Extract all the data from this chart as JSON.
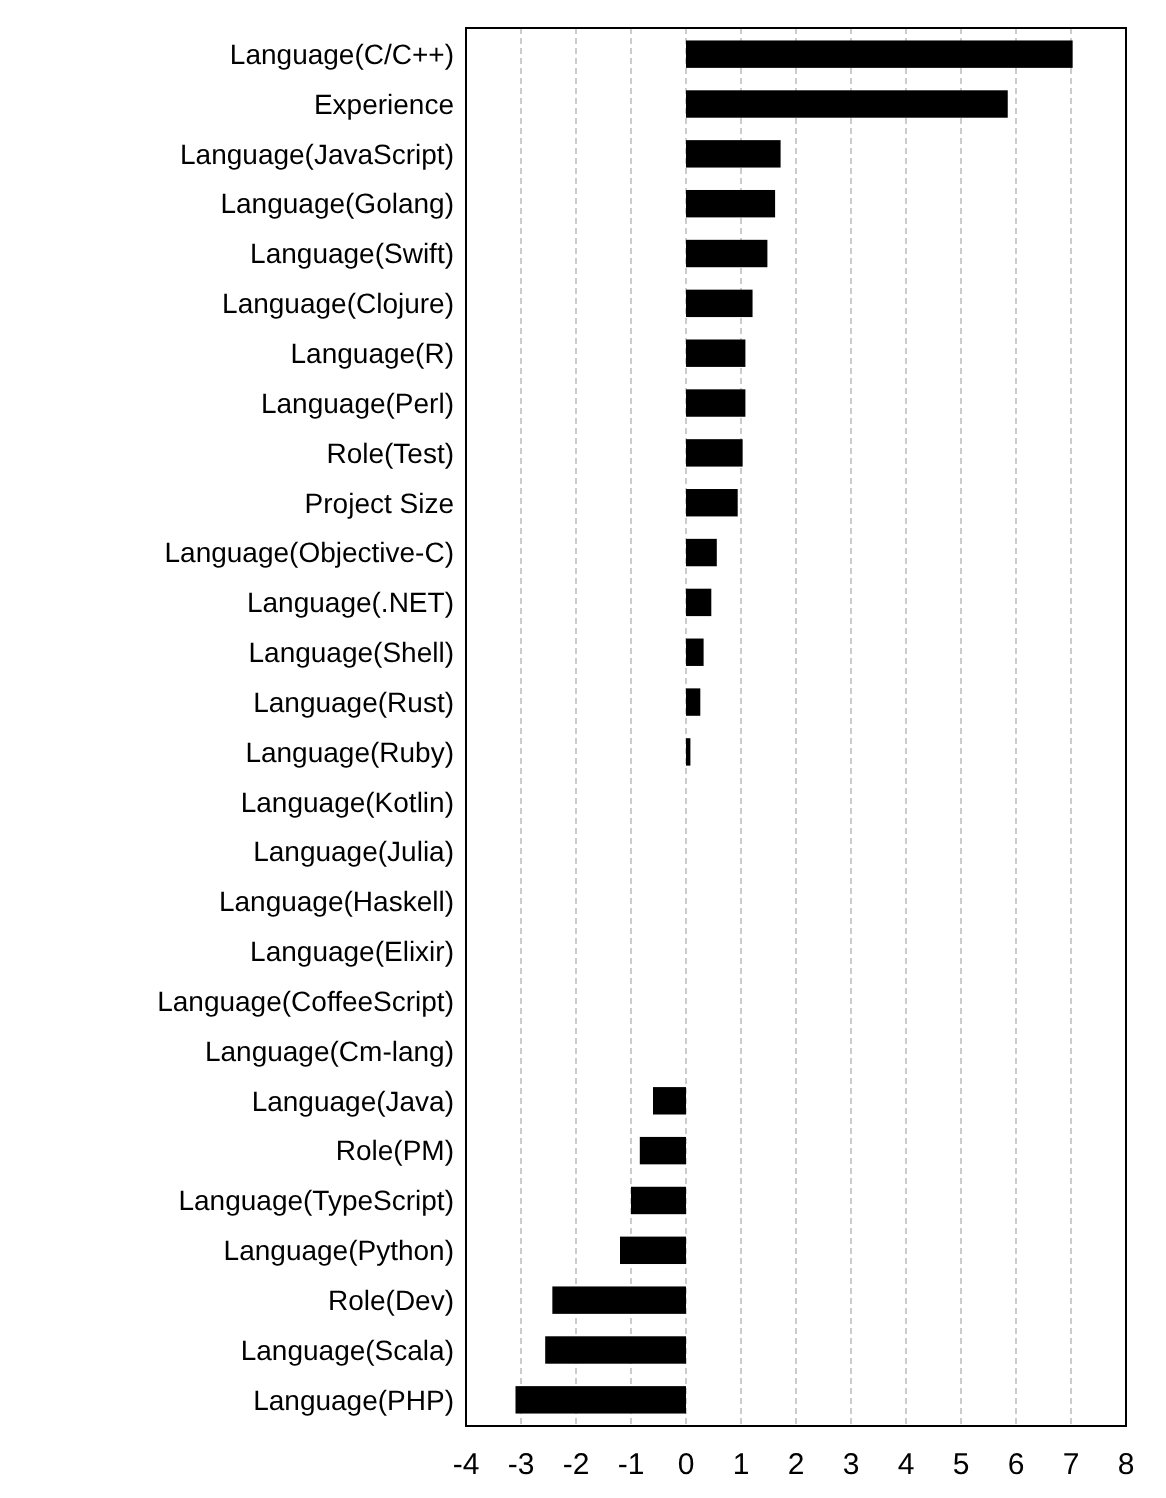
{
  "chart_data": {
    "type": "bar",
    "orientation": "horizontal",
    "categories": [
      "Language(C/C++)",
      "Experience",
      "Language(JavaScript)",
      "Language(Golang)",
      "Language(Swift)",
      "Language(Clojure)",
      "Language(R)",
      "Language(Perl)",
      "Role(Test)",
      "Project Size",
      "Language(Objective-C)",
      "Language(.NET)",
      "Language(Shell)",
      "Language(Rust)",
      "Language(Ruby)",
      "Language(Kotlin)",
      "Language(Julia)",
      "Language(Haskell)",
      "Language(Elixir)",
      "Language(CoffeeScript)",
      "Language(Cm-lang)",
      "Language(Java)",
      "Role(PM)",
      "Language(TypeScript)",
      "Language(Python)",
      "Role(Dev)",
      "Language(Scala)",
      "Language(PHP)"
    ],
    "values": [
      7.03,
      5.85,
      1.72,
      1.62,
      1.48,
      1.21,
      1.08,
      1.08,
      1.03,
      0.94,
      0.56,
      0.46,
      0.32,
      0.26,
      0.08,
      0,
      0,
      0,
      0,
      0,
      0,
      -0.6,
      -0.84,
      -1.0,
      -1.2,
      -2.43,
      -2.56,
      -3.1
    ],
    "color": "#000000",
    "xlim": [
      -4,
      8
    ],
    "xticks": [
      -4,
      -3,
      -2,
      -1,
      0,
      1,
      2,
      3,
      4,
      5,
      6,
      7,
      8
    ],
    "grid": "x"
  }
}
